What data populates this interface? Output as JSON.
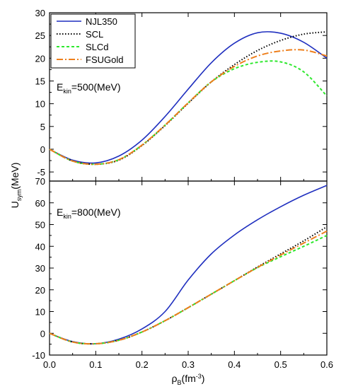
{
  "ylabel": {
    "main": "U",
    "sub": "sym",
    "unit": "(MeV)"
  },
  "xlabel": {
    "main": "ρ",
    "sub": "B",
    "unit_pre": "(fm",
    "unit_sup": "-3",
    "unit_post": ")"
  },
  "legend": {
    "placement": "top-left of top panel"
  },
  "chart_data": [
    {
      "type": "line",
      "annotation": {
        "pre": "E",
        "sub": "kin",
        "post": "=500(MeV)"
      },
      "xlim": [
        0.0,
        0.6
      ],
      "ylim": [
        -7,
        30
      ],
      "xticks": [
        "0.0",
        "0.1",
        "0.2",
        "0.3",
        "0.4",
        "0.5",
        "0.6"
      ],
      "yticks": [
        "-5",
        "0",
        "5",
        "10",
        "15",
        "20",
        "25",
        "30"
      ],
      "ytick_values": [
        -5,
        0,
        5,
        10,
        15,
        20,
        25,
        30
      ],
      "x": [
        0.0,
        0.05,
        0.1,
        0.15,
        0.2,
        0.25,
        0.3,
        0.35,
        0.4,
        0.45,
        0.5,
        0.55,
        0.6
      ],
      "series": [
        {
          "name": "NJL350",
          "color": "#1f2fbf",
          "dash": "",
          "values": [
            0,
            -2.4,
            -3.0,
            -1.5,
            2.0,
            7.2,
            13.2,
            19.0,
            23.3,
            25.6,
            25.5,
            23.5,
            20.0
          ]
        },
        {
          "name": "SCL",
          "color": "#000000",
          "dash": "1.5,2.5",
          "values": [
            0,
            -2.6,
            -3.3,
            -2.4,
            0.8,
            5.2,
            10.1,
            14.8,
            18.6,
            21.7,
            23.9,
            25.3,
            25.8
          ]
        },
        {
          "name": "SLCd",
          "color": "#2ee82e",
          "dash": "4,3",
          "values": [
            0,
            -2.6,
            -3.3,
            -2.3,
            0.9,
            5.3,
            10.2,
            14.8,
            17.7,
            19.1,
            19.2,
            17.0,
            11.7
          ]
        },
        {
          "name": "FSUGold",
          "color": "#ee7f1c",
          "dash": "9,3,2,3",
          "values": [
            0,
            -2.6,
            -3.3,
            -2.3,
            0.9,
            5.3,
            10.2,
            14.8,
            18.2,
            20.5,
            21.6,
            21.8,
            20.5
          ]
        }
      ]
    },
    {
      "type": "line",
      "annotation": {
        "pre": "E",
        "sub": "kin",
        "post": "=800(MeV)"
      },
      "xlim": [
        0.0,
        0.6
      ],
      "ylim": [
        -10,
        70
      ],
      "xticks": [
        "0.0",
        "0.1",
        "0.2",
        "0.3",
        "0.4",
        "0.5",
        "0.6"
      ],
      "yticks": [
        "-10",
        "0",
        "10",
        "20",
        "30",
        "40",
        "50",
        "60",
        "70"
      ],
      "ytick_values": [
        -10,
        0,
        10,
        20,
        30,
        40,
        50,
        60,
        70
      ],
      "x": [
        0.0,
        0.05,
        0.1,
        0.15,
        0.2,
        0.25,
        0.3,
        0.35,
        0.4,
        0.45,
        0.5,
        0.55,
        0.6
      ],
      "series": [
        {
          "name": "NJL350",
          "color": "#1f2fbf",
          "dash": "",
          "values": [
            0,
            -3.8,
            -4.8,
            -2.7,
            2.0,
            10.0,
            24.5,
            36.5,
            45.2,
            52.2,
            58.2,
            63.5,
            68.0
          ]
        },
        {
          "name": "SCL",
          "color": "#000000",
          "dash": "1.5,2.5",
          "values": [
            0,
            -4.0,
            -4.8,
            -3.2,
            0.6,
            5.8,
            11.8,
            18.0,
            24.2,
            30.5,
            36.5,
            42.5,
            49.0
          ]
        },
        {
          "name": "SLCd",
          "color": "#2ee82e",
          "dash": "4,3",
          "values": [
            0,
            -4.0,
            -4.8,
            -3.2,
            0.6,
            5.8,
            11.8,
            18.0,
            24.2,
            30.2,
            35.2,
            40.0,
            45.0
          ]
        },
        {
          "name": "FSUGold",
          "color": "#ee7f1c",
          "dash": "9,3,2,3",
          "values": [
            0,
            -4.0,
            -4.8,
            -3.2,
            0.6,
            5.8,
            11.8,
            18.0,
            24.2,
            30.3,
            36.0,
            41.5,
            47.0
          ]
        }
      ]
    }
  ]
}
